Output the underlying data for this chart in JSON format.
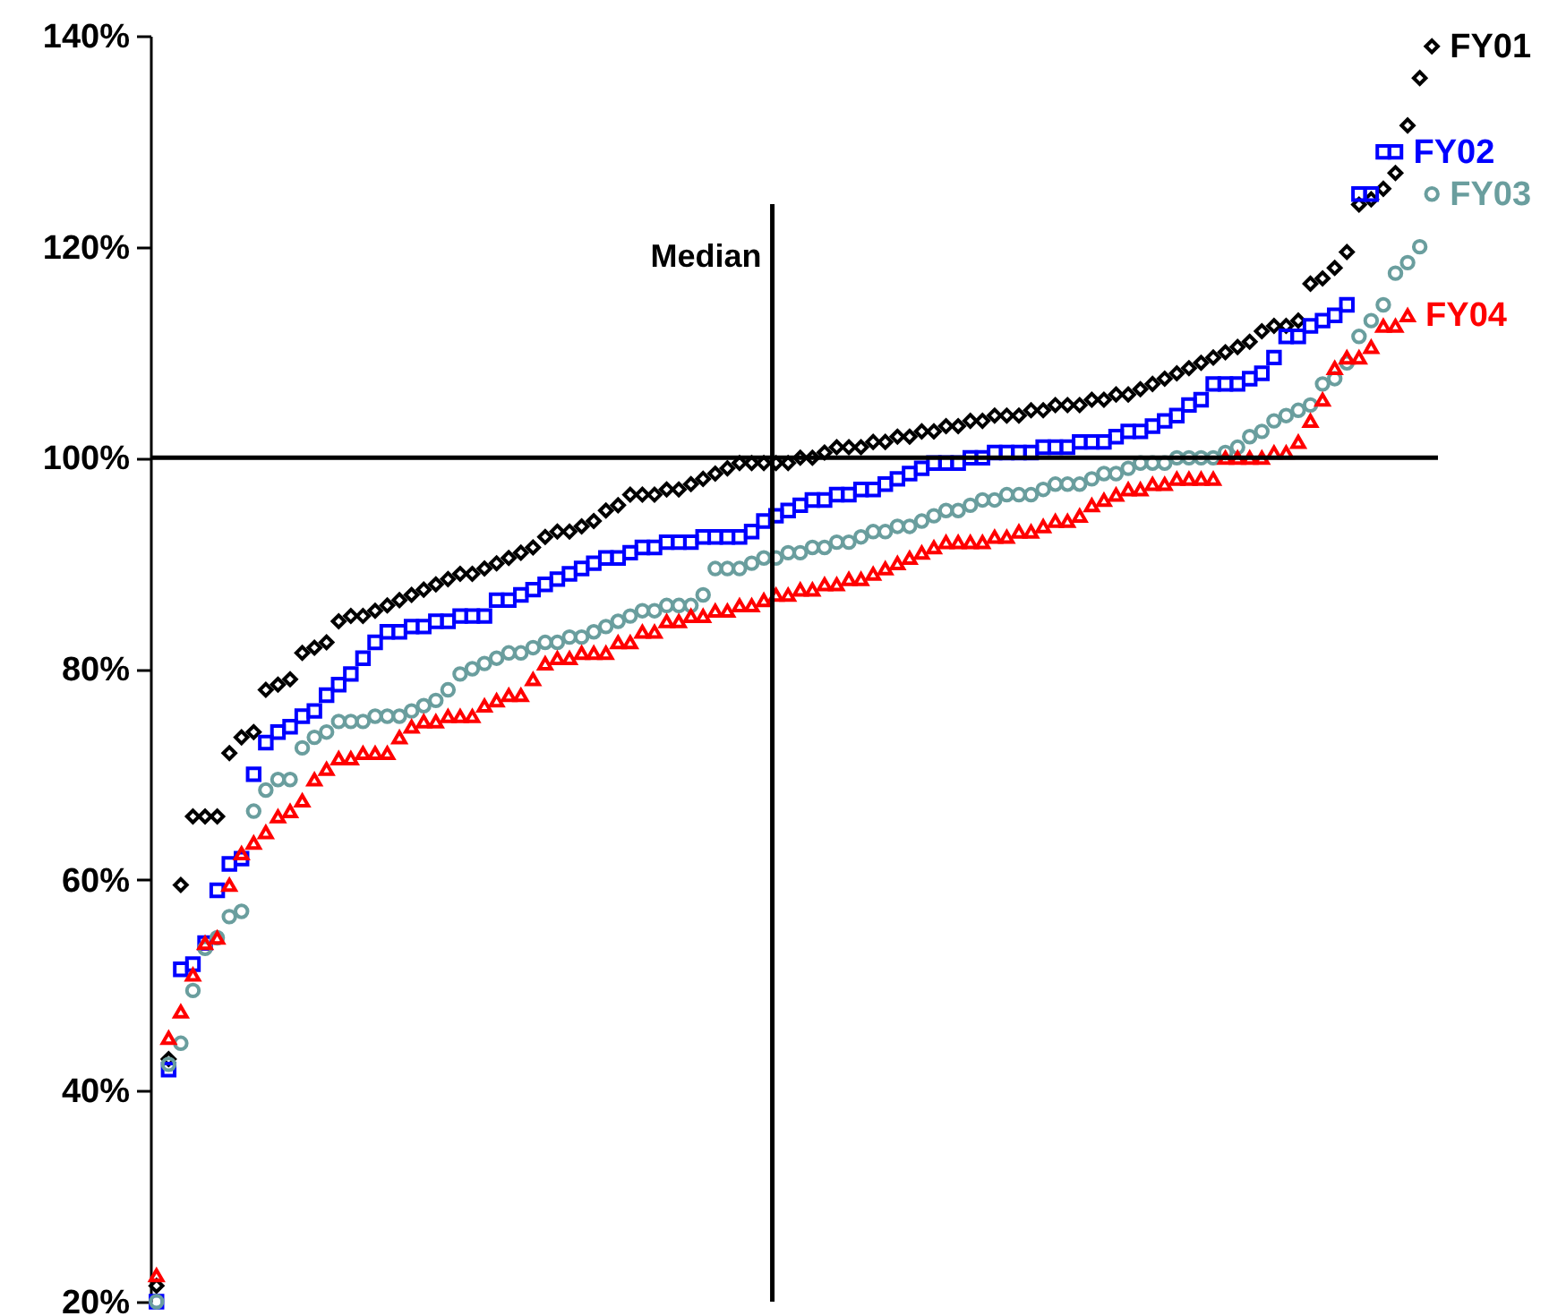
{
  "chart_data": {
    "type": "scatter",
    "categories": [
      null,
      null,
      null,
      null,
      null,
      null,
      null,
      null,
      null,
      null,
      null,
      null,
      null,
      null,
      null,
      null,
      null,
      null,
      null,
      null,
      null,
      null,
      null,
      null,
      null,
      null,
      null,
      null,
      null,
      null,
      null,
      null,
      null,
      null,
      null,
      null,
      null,
      null,
      null,
      null,
      null,
      null,
      null,
      null,
      null,
      null,
      null,
      null,
      null,
      null,
      null,
      null,
      null,
      null,
      null,
      null,
      null,
      null,
      null,
      null,
      null,
      null,
      null,
      null,
      null,
      null,
      null,
      null,
      null,
      null,
      null,
      null,
      null,
      null,
      null,
      null,
      null,
      null,
      null,
      null,
      null,
      null,
      null,
      null,
      null,
      null,
      null,
      null,
      null,
      null,
      null,
      null,
      null,
      null,
      null,
      null,
      null,
      null,
      null,
      null,
      null,
      null,
      null,
      null,
      null,
      null
    ],
    "ylim": [
      20,
      140
    ],
    "yticks": [
      {
        "value": 20,
        "label": "20%"
      },
      {
        "value": 40,
        "label": "40%"
      },
      {
        "value": 60,
        "label": "60%"
      },
      {
        "value": 80,
        "label": "80%"
      },
      {
        "value": 100,
        "label": "100%"
      },
      {
        "value": 120,
        "label": "120%"
      },
      {
        "value": 140,
        "label": "140%"
      }
    ],
    "tick_labels": "y",
    "grid": false,
    "legend": "right",
    "ref_lines": [
      {
        "axis": "y",
        "value": 100
      }
    ],
    "annotations": [
      "Median"
    ],
    "series": [
      {
        "name": "FY01",
        "color": "#000000",
        "marker": "diamond",
        "values": [
          21.5,
          43,
          59.5,
          66,
          66,
          66,
          72,
          73.5,
          74,
          78,
          78.5,
          79,
          81.5,
          82,
          82.5,
          84.5,
          85,
          85,
          85.5,
          86,
          86.5,
          87,
          87.5,
          88,
          88.5,
          89,
          89,
          89.5,
          90,
          90.5,
          91,
          91.5,
          92.5,
          93,
          93,
          93.5,
          94,
          95,
          95.5,
          96.5,
          96.5,
          96.5,
          97,
          97,
          97.5,
          98,
          98.5,
          99,
          99.5,
          99.5,
          99.5,
          99.5,
          99.5,
          100,
          100,
          100.5,
          101,
          101,
          101,
          101.5,
          101.5,
          102,
          102,
          102.5,
          102.5,
          103,
          103,
          103.5,
          103.5,
          104,
          104,
          104,
          104.5,
          104.5,
          105,
          105,
          105,
          105.5,
          105.5,
          106,
          106,
          106.5,
          107,
          107.5,
          108,
          108.5,
          109,
          109.5,
          110,
          110.5,
          111,
          112,
          112.5,
          112.5,
          113,
          116.5,
          117,
          118,
          119.5,
          124,
          124.5,
          125.5,
          127,
          131.5,
          136,
          139
        ]
      },
      {
        "name": "FY02",
        "color": "#0000ff",
        "marker": "square",
        "values": [
          20,
          42,
          51.5,
          52,
          54,
          59,
          61.5,
          62,
          70,
          73,
          74,
          74.5,
          75.5,
          76,
          77.5,
          78.5,
          79.5,
          81,
          82.5,
          83.5,
          83.5,
          84,
          84,
          84.5,
          84.5,
          85,
          85,
          85,
          86.5,
          86.5,
          87,
          87.5,
          88,
          88.5,
          89,
          89.5,
          90,
          90.5,
          90.5,
          91,
          91.5,
          91.5,
          92,
          92,
          92,
          92.5,
          92.5,
          92.5,
          92.5,
          93,
          94,
          94.5,
          95,
          95.5,
          96,
          96,
          96.5,
          96.5,
          97,
          97,
          97.5,
          98,
          98.5,
          99,
          99.5,
          99.5,
          99.5,
          100,
          100,
          100.5,
          100.5,
          100.5,
          100.5,
          101,
          101,
          101,
          101.5,
          101.5,
          101.5,
          102,
          102.5,
          102.5,
          103,
          103.5,
          104,
          105,
          105.5,
          107,
          107,
          107,
          107.5,
          108,
          109.5,
          111.5,
          111.5,
          112.5,
          113,
          113.5,
          114.5,
          125,
          125,
          129,
          129,
          null,
          null,
          null
        ]
      },
      {
        "name": "FY03",
        "color": "#6a9e9e",
        "marker": "circle",
        "values": [
          20,
          42.5,
          44.5,
          49.5,
          53.5,
          54.5,
          56.5,
          57,
          66.5,
          68.5,
          69.5,
          69.5,
          72.5,
          73.5,
          74,
          75,
          75,
          75,
          75.5,
          75.5,
          75.5,
          76,
          76.5,
          77,
          78,
          79.5,
          80,
          80.5,
          81,
          81.5,
          81.5,
          82,
          82.5,
          82.5,
          83,
          83,
          83.5,
          84,
          84.5,
          85,
          85.5,
          85.5,
          86,
          86,
          86,
          87,
          89.5,
          89.5,
          89.5,
          90,
          90.5,
          90.5,
          91,
          91,
          91.5,
          91.5,
          92,
          92,
          92.5,
          93,
          93,
          93.5,
          93.5,
          94,
          94.5,
          95,
          95,
          95.5,
          96,
          96,
          96.5,
          96.5,
          96.5,
          97,
          97.5,
          97.5,
          97.5,
          98,
          98.5,
          98.5,
          99,
          99.5,
          99.5,
          99.5,
          100,
          100,
          100,
          100,
          100.5,
          101,
          102,
          102.5,
          103.5,
          104,
          104.5,
          105,
          107,
          107.5,
          109,
          111.5,
          113,
          114.5,
          117.5,
          118.5,
          120,
          125
        ]
      },
      {
        "name": "FY04",
        "color": "#ff0000",
        "marker": "triangle",
        "values": [
          22.5,
          45,
          47.5,
          51,
          54,
          54.5,
          59.5,
          62.5,
          63.5,
          64.5,
          66,
          66.5,
          67.5,
          69.5,
          70.5,
          71.5,
          71.5,
          72,
          72,
          72,
          73.5,
          74.5,
          75,
          75,
          75.5,
          75.5,
          75.5,
          76.5,
          77,
          77.5,
          77.5,
          79,
          80.5,
          81,
          81,
          81.5,
          81.5,
          81.5,
          82.5,
          82.5,
          83.5,
          83.5,
          84.5,
          84.5,
          85,
          85,
          85.5,
          85.5,
          86,
          86,
          86.5,
          87,
          87,
          87.5,
          87.5,
          88,
          88,
          88.5,
          88.5,
          89,
          89.5,
          90,
          90.5,
          91,
          91.5,
          92,
          92,
          92,
          92,
          92.5,
          92.5,
          93,
          93,
          93.5,
          94,
          94,
          94.5,
          95.5,
          96,
          96.5,
          97,
          97,
          97.5,
          97.5,
          98,
          98,
          98,
          98,
          100,
          100,
          100,
          100,
          100.5,
          100.5,
          101.5,
          103.5,
          105.5,
          108.5,
          109.5,
          109.5,
          110.5,
          112.5,
          112.5,
          113.5,
          null,
          null
        ]
      }
    ]
  }
}
